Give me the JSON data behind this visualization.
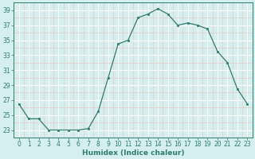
{
  "x": [
    0,
    1,
    2,
    3,
    4,
    5,
    6,
    7,
    8,
    9,
    10,
    11,
    12,
    13,
    14,
    15,
    16,
    17,
    18,
    19,
    20,
    21,
    22,
    23
  ],
  "y": [
    26.5,
    24.5,
    24.5,
    23.0,
    23.0,
    23.0,
    23.0,
    23.2,
    25.5,
    30.0,
    34.5,
    35.0,
    38.0,
    38.5,
    39.2,
    38.5,
    37.0,
    37.3,
    37.0,
    36.5,
    33.5,
    32.0,
    28.5,
    26.5
  ],
  "line_color": "#2d7d6e",
  "marker_color": "#2d7d6e",
  "bg_color": "#d5efef",
  "major_grid_color": "#b8d8d8",
  "minor_grid_color": "#e8c8c8",
  "white_grid_color": "#ffffff",
  "xlabel": "Humidex (Indice chaleur)",
  "ylabel": "",
  "xlim": [
    -0.5,
    23.5
  ],
  "ylim": [
    22,
    40
  ],
  "yticks": [
    23,
    25,
    27,
    29,
    31,
    33,
    35,
    37,
    39
  ],
  "xticks": [
    0,
    1,
    2,
    3,
    4,
    5,
    6,
    7,
    8,
    9,
    10,
    11,
    12,
    13,
    14,
    15,
    16,
    17,
    18,
    19,
    20,
    21,
    22,
    23
  ],
  "xtick_labels": [
    "0",
    "1",
    "2",
    "3",
    "4",
    "5",
    "6",
    "7",
    "8",
    "9",
    "10",
    "11",
    "12",
    "13",
    "14",
    "15",
    "16",
    "17",
    "18",
    "19",
    "20",
    "21",
    "22",
    "23"
  ],
  "axis_fontsize": 5.5,
  "label_fontsize": 6.5
}
